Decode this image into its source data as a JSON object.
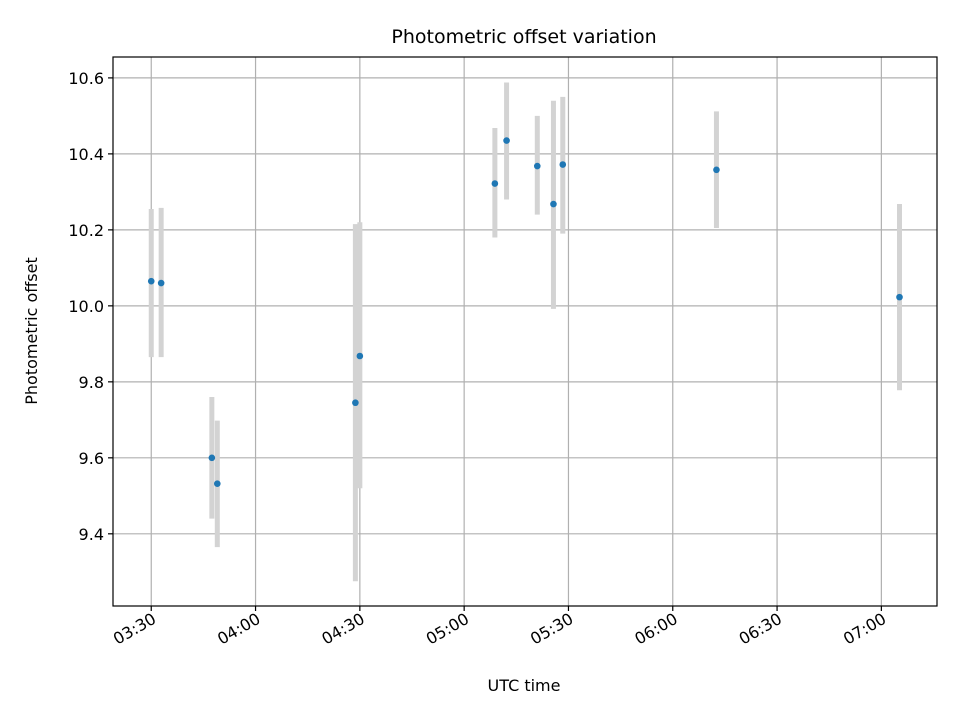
{
  "chart_data": {
    "type": "scatter",
    "title": "Photometric offset variation",
    "xlabel": "UTC time",
    "ylabel": "Photometric offset",
    "xlim": [
      "03:19",
      "07:16"
    ],
    "ylim": [
      9.21,
      10.655
    ],
    "grid": true,
    "x_ticks": [
      "03:30",
      "04:00",
      "04:30",
      "05:00",
      "05:30",
      "06:00",
      "06:30",
      "07:00"
    ],
    "y_ticks": [
      "9.4",
      "9.6",
      "9.8",
      "10.0",
      "10.2",
      "10.4",
      "10.6"
    ],
    "series": [
      {
        "points": [
          {
            "x": "03:30:00",
            "y": 10.065,
            "yerr_low": 9.865,
            "yerr_high": 10.255
          },
          {
            "x": "03:32:51",
            "y": 10.06,
            "yerr_low": 9.865,
            "yerr_high": 10.258
          },
          {
            "x": "03:47:26",
            "y": 9.6,
            "yerr_low": 9.44,
            "yerr_high": 9.76
          },
          {
            "x": "03:49:00",
            "y": 9.532,
            "yerr_low": 9.365,
            "yerr_high": 9.698
          },
          {
            "x": "04:28:43",
            "y": 9.745,
            "yerr_low": 9.275,
            "yerr_high": 10.215
          },
          {
            "x": "04:30:00",
            "y": 9.868,
            "yerr_low": 9.52,
            "yerr_high": 10.22
          },
          {
            "x": "05:08:50",
            "y": 10.322,
            "yerr_low": 10.18,
            "yerr_high": 10.468
          },
          {
            "x": "05:12:12",
            "y": 10.435,
            "yerr_low": 10.28,
            "yerr_high": 10.588
          },
          {
            "x": "05:21:02",
            "y": 10.368,
            "yerr_low": 10.24,
            "yerr_high": 10.5
          },
          {
            "x": "05:25:41",
            "y": 10.268,
            "yerr_low": 9.992,
            "yerr_high": 10.54
          },
          {
            "x": "05:28:22",
            "y": 10.372,
            "yerr_low": 10.19,
            "yerr_high": 10.55
          },
          {
            "x": "06:12:34",
            "y": 10.358,
            "yerr_low": 10.205,
            "yerr_high": 10.512
          },
          {
            "x": "07:05:13",
            "y": 10.023,
            "yerr_low": 9.778,
            "yerr_high": 10.268
          }
        ]
      }
    ]
  },
  "colors": {
    "marker": "#1f77b4",
    "errorbar": "#d3d3d3",
    "grid": "#b0b0b0",
    "axes": "#000000"
  }
}
